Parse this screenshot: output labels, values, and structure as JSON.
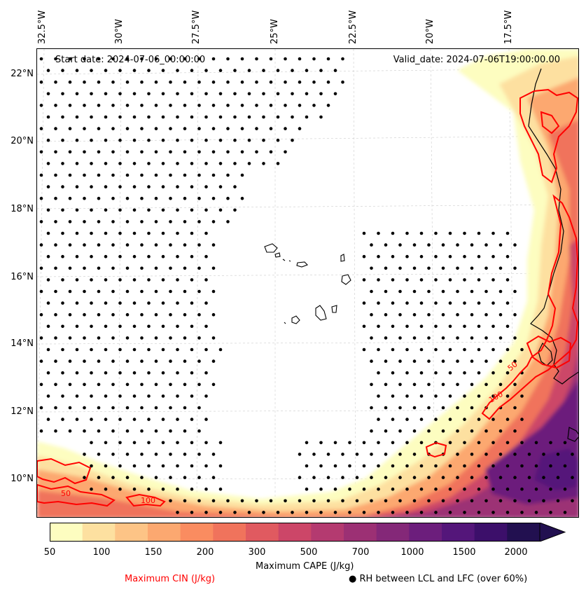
{
  "header": {
    "start_date": "Start date: 2024-07-06_00:00:00",
    "valid_date": "Valid_date: 2024-07-06T19:00:00.00"
  },
  "axes": {
    "lon_labels": [
      "32.5°W",
      "30°W",
      "27.5°W",
      "25°W",
      "22.5°W",
      "20°W",
      "17.5°W"
    ],
    "lat_labels": [
      "22°N",
      "20°N",
      "18°N",
      "16°N",
      "14°N",
      "12°N",
      "10°N"
    ]
  },
  "contour_labels": {
    "cin_50": "50",
    "cin_100": "100"
  },
  "colorbar": {
    "title": "Maximum CAPE (J/kg)",
    "ticks": [
      "50",
      "100",
      "150",
      "200",
      "300",
      "500",
      "700",
      "1000",
      "1500",
      "2000"
    ],
    "colors": [
      "#fdfdc0",
      "#fde0a0",
      "#fdc486",
      "#fca870",
      "#fa8c60",
      "#f0735c",
      "#e05a60",
      "#cc4668",
      "#b43a70",
      "#9c3074",
      "#842878",
      "#6c1e7c",
      "#54167a",
      "#3c0f6a",
      "#221050"
    ]
  },
  "legend": {
    "cin_label": "Maximum CIN (J/kg)",
    "cin_color": "#ff0000",
    "rh_label": "RH between LCL and LFC (over 60%)",
    "rh_marker": "●"
  }
}
